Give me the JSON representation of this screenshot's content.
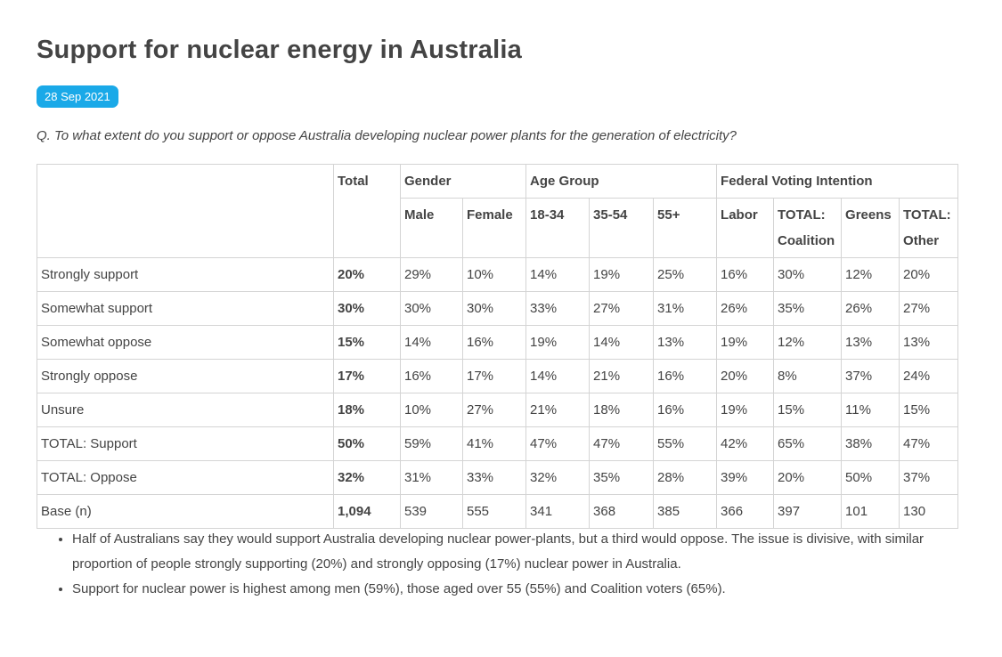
{
  "header": {
    "title": "Support for nuclear energy in Australia",
    "date": "28 Sep 2021",
    "question": "Q. To what extent do you support or oppose Australia developing nuclear power plants for the generation of electricity?"
  },
  "table": {
    "total_header": "Total",
    "groups": [
      "Gender",
      "Age Group",
      "Federal Voting Intention"
    ],
    "columns": [
      "Male",
      "Female",
      "18-34",
      "35-54",
      "55+",
      "Labor",
      "TOTAL: Coalition",
      "Greens",
      "TOTAL: Other"
    ],
    "rows": [
      {
        "label": "Strongly support",
        "cells": [
          "20%",
          "29%",
          "10%",
          "14%",
          "19%",
          "25%",
          "16%",
          "30%",
          "12%",
          "20%"
        ]
      },
      {
        "label": "Somewhat support",
        "cells": [
          "30%",
          "30%",
          "30%",
          "33%",
          "27%",
          "31%",
          "26%",
          "35%",
          "26%",
          "27%"
        ]
      },
      {
        "label": "Somewhat oppose",
        "cells": [
          "15%",
          "14%",
          "16%",
          "19%",
          "14%",
          "13%",
          "19%",
          "12%",
          "13%",
          "13%"
        ]
      },
      {
        "label": "Strongly oppose",
        "cells": [
          "17%",
          "16%",
          "17%",
          "14%",
          "21%",
          "16%",
          "20%",
          "8%",
          "37%",
          "24%"
        ]
      },
      {
        "label": "Unsure",
        "cells": [
          "18%",
          "10%",
          "27%",
          "21%",
          "18%",
          "16%",
          "19%",
          "15%",
          "11%",
          "15%"
        ]
      },
      {
        "label": "TOTAL: Support",
        "cells": [
          "50%",
          "59%",
          "41%",
          "47%",
          "47%",
          "55%",
          "42%",
          "65%",
          "38%",
          "47%"
        ]
      },
      {
        "label": "TOTAL: Oppose",
        "cells": [
          "32%",
          "31%",
          "33%",
          "32%",
          "35%",
          "28%",
          "39%",
          "20%",
          "50%",
          "37%"
        ]
      },
      {
        "label": "Base (n)",
        "cells": [
          "1,094",
          "539",
          "555",
          "341",
          "368",
          "385",
          "366",
          "397",
          "101",
          "130"
        ]
      }
    ]
  },
  "notes": [
    "Half of Australians say they would support Australia developing nuclear power-plants, but a third would oppose. The issue is divisive, with similar proportion of people strongly supporting (20%) and strongly opposing (17%) nuclear power in Australia.",
    "Support for nuclear power is highest among men (59%), those aged over 55 (55%) and Coalition voters (65%)."
  ]
}
